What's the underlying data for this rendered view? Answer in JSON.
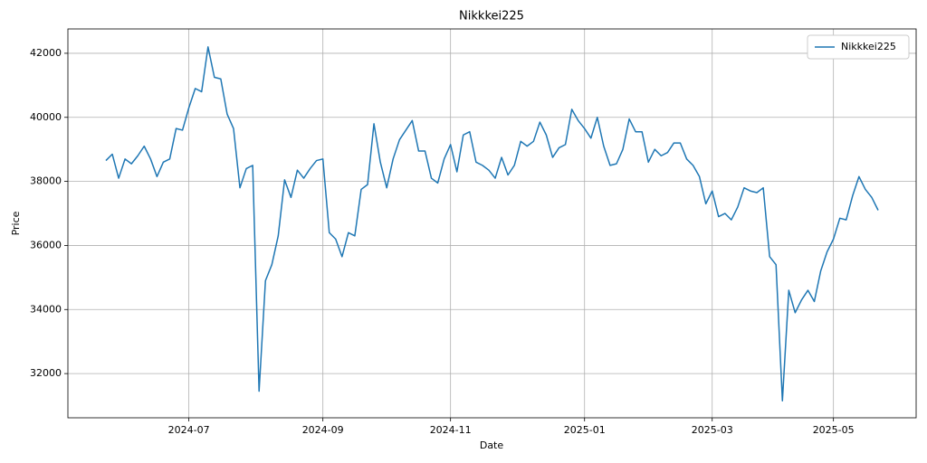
{
  "chart_data": {
    "type": "line",
    "title": "Nikkkei225",
    "x_label": "Date",
    "y_label": "Price",
    "categories": [
      null,
      null,
      null,
      null,
      null,
      null,
      null,
      null,
      null,
      null,
      null,
      null,
      null,
      "2024-07",
      null,
      null,
      null,
      null,
      null,
      null,
      null,
      null,
      null,
      null,
      null,
      null,
      null,
      null,
      null,
      null,
      null,
      null,
      null,
      null,
      "2024-09",
      null,
      null,
      null,
      null,
      null,
      null,
      null,
      null,
      null,
      null,
      null,
      null,
      null,
      null,
      null,
      null,
      null,
      null,
      null,
      "2024-11",
      null,
      null,
      null,
      null,
      null,
      null,
      null,
      null,
      null,
      null,
      null,
      null,
      null,
      null,
      null,
      null,
      null,
      null,
      null,
      null,
      "2025-01",
      null,
      null,
      null,
      null,
      null,
      null,
      null,
      null,
      null,
      null,
      null,
      null,
      null,
      null,
      null,
      null,
      null,
      null,
      null,
      "2025-03",
      null,
      null,
      null,
      null,
      null,
      null,
      null,
      null,
      null,
      null,
      null,
      null,
      null,
      null,
      null,
      null,
      null,
      null,
      "2025-05",
      null,
      null,
      null,
      null,
      null,
      null,
      null
    ],
    "series": [
      {
        "name": "Nikkkei225",
        "color": "#1f77b4",
        "values": [
          38650,
          38850,
          38100,
          38700,
          38550,
          38800,
          39100,
          38700,
          38150,
          38600,
          38700,
          39650,
          39600,
          40300,
          40900,
          40800,
          42200,
          41250,
          41200,
          40100,
          39650,
          37800,
          38400,
          38500,
          31450,
          34900,
          35400,
          36300,
          38050,
          37500,
          38350,
          38100,
          38400,
          38650,
          38700,
          36400,
          36200,
          35650,
          36400,
          36300,
          37750,
          37900,
          39800,
          38600,
          37800,
          38700,
          39300,
          39600,
          39900,
          38950,
          38950,
          38100,
          37950,
          38700,
          39150,
          38300,
          39450,
          39550,
          38600,
          38500,
          38350,
          38100,
          38750,
          38200,
          38500,
          39250,
          39100,
          39250,
          39850,
          39450,
          38750,
          39050,
          39150,
          40250,
          39900,
          39650,
          39350,
          40000,
          39100,
          38500,
          38550,
          39000,
          39950,
          39550,
          39550,
          38600,
          39000,
          38800,
          38900,
          39200,
          39200,
          38700,
          38500,
          38150,
          37300,
          37700,
          36900,
          37000,
          36800,
          37200,
          37800,
          37700,
          37650,
          37800,
          35650,
          35400,
          31150,
          34600,
          33900,
          34300,
          34600,
          34250,
          35200,
          35800,
          36200,
          36850,
          36800,
          37550,
          38150,
          37750,
          37500,
          37100
        ]
      }
    ],
    "ylim": [
      30620,
      42760
    ],
    "yticks": [
      32000,
      34000,
      36000,
      38000,
      40000,
      42000
    ],
    "grid": true,
    "legend": "upper right"
  }
}
